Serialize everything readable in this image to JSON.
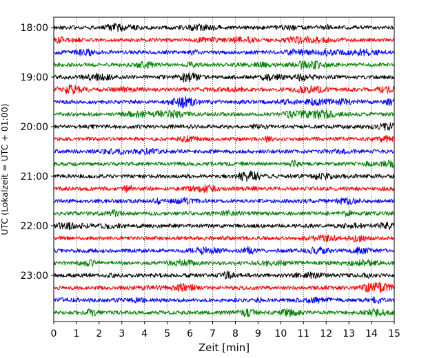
{
  "chart_data": {
    "type": "line",
    "subtype": "helicorder",
    "title": "",
    "xlabel": "Zeit  [min]",
    "ylabel": "UTC (Lokalzeit = UTC + 01:00)",
    "xlim": [
      0,
      15
    ],
    "x_ticks": [
      "0",
      "1",
      "2",
      "3",
      "4",
      "5",
      "6",
      "7",
      "8",
      "9",
      "10",
      "11",
      "12",
      "13",
      "14",
      "15"
    ],
    "y_tick_labels": [
      "18:00",
      "19:00",
      "20:00",
      "21:00",
      "22:00",
      "23:00"
    ],
    "trace_minutes": 15,
    "trace_count": 24,
    "trace_colors": [
      "#000000",
      "#ff0000",
      "#0000ff",
      "#008000"
    ],
    "grid": {
      "vertical": true,
      "style": "dotted"
    },
    "traces": [
      {
        "start": "18:00"
      },
      {
        "start": "18:15"
      },
      {
        "start": "18:30"
      },
      {
        "start": "18:45"
      },
      {
        "start": "19:00"
      },
      {
        "start": "19:15"
      },
      {
        "start": "19:30"
      },
      {
        "start": "19:45"
      },
      {
        "start": "20:00"
      },
      {
        "start": "20:15"
      },
      {
        "start": "20:30"
      },
      {
        "start": "20:45"
      },
      {
        "start": "21:00"
      },
      {
        "start": "21:15"
      },
      {
        "start": "21:30"
      },
      {
        "start": "21:45"
      },
      {
        "start": "22:00"
      },
      {
        "start": "22:15"
      },
      {
        "start": "22:30"
      },
      {
        "start": "22:45"
      },
      {
        "start": "23:00"
      },
      {
        "start": "23:15"
      },
      {
        "start": "23:30"
      },
      {
        "start": "23:45"
      }
    ]
  }
}
